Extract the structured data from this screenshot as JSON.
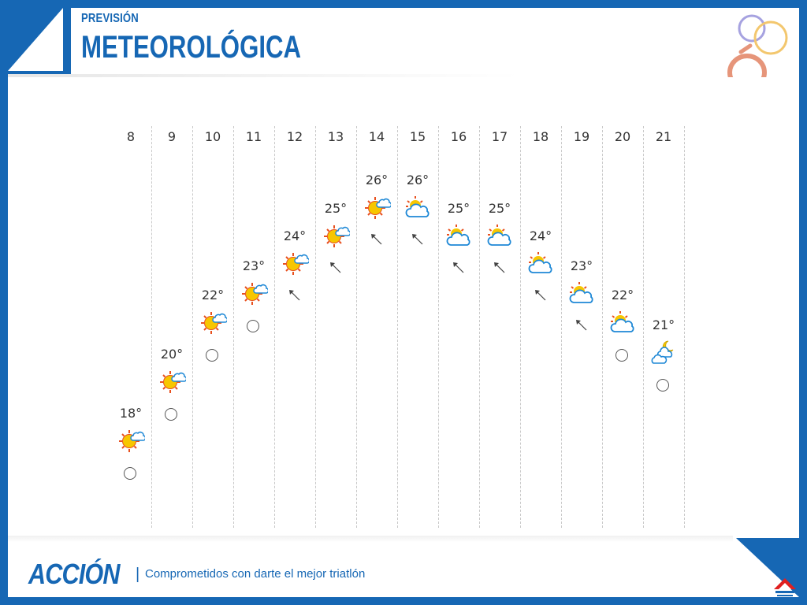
{
  "header": {
    "subtitle": "PREVISIÓN",
    "title": "METEOROLÓGICA"
  },
  "footer": {
    "brand": "ACCIÓN",
    "separator": "|",
    "tagline": "Comprometidos con darte el mejor triatlón"
  },
  "colors": {
    "accent": "#1667b4",
    "sun": "#f7c600",
    "sun_ray": "#e8501e",
    "cloud": "#1e88d6",
    "ring_lilac": "#a6a2e0",
    "ring_yellow": "#f3c76e",
    "ring_salmon": "#e6957a"
  },
  "forecast": [
    {
      "hour": "8",
      "temp": "18°",
      "temp_value": 18,
      "icon": "sun-cloud-icon",
      "wind": "calm"
    },
    {
      "hour": "9",
      "temp": "20°",
      "temp_value": 20,
      "icon": "sun-cloud-icon",
      "wind": "calm"
    },
    {
      "hour": "10",
      "temp": "22°",
      "temp_value": 22,
      "icon": "sun-cloud-icon",
      "wind": "calm"
    },
    {
      "hour": "11",
      "temp": "23°",
      "temp_value": 23,
      "icon": "sun-cloud-icon",
      "wind": "calm"
    },
    {
      "hour": "12",
      "temp": "24°",
      "temp_value": 24,
      "icon": "sun-cloud-icon",
      "wind": "arrow"
    },
    {
      "hour": "13",
      "temp": "25°",
      "temp_value": 25,
      "icon": "sun-cloud-icon",
      "wind": "arrow"
    },
    {
      "hour": "14",
      "temp": "26°",
      "temp_value": 26,
      "icon": "sun-cloud-icon",
      "wind": "arrow"
    },
    {
      "hour": "15",
      "temp": "26°",
      "temp_value": 26,
      "icon": "cloud-sun-icon",
      "wind": "arrow"
    },
    {
      "hour": "16",
      "temp": "25°",
      "temp_value": 25,
      "icon": "cloud-sun-icon",
      "wind": "arrow"
    },
    {
      "hour": "17",
      "temp": "25°",
      "temp_value": 25,
      "icon": "cloud-sun-icon",
      "wind": "arrow"
    },
    {
      "hour": "18",
      "temp": "24°",
      "temp_value": 24,
      "icon": "cloud-sun-icon",
      "wind": "arrow"
    },
    {
      "hour": "19",
      "temp": "23°",
      "temp_value": 23,
      "icon": "cloud-sun-icon",
      "wind": "arrow"
    },
    {
      "hour": "20",
      "temp": "22°",
      "temp_value": 22,
      "icon": "cloud-sun-icon",
      "wind": "calm"
    },
    {
      "hour": "21",
      "temp": "21°",
      "temp_value": 21,
      "icon": "moon-clouds-icon",
      "wind": "calm"
    }
  ]
}
